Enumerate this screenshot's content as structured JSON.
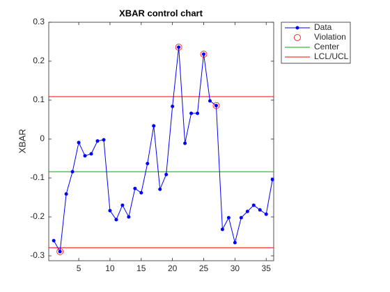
{
  "chart_data": {
    "type": "control",
    "title": "XBAR control chart",
    "ylabel": "XBAR",
    "xlim": [
      0.2,
      36.2
    ],
    "ylim": [
      -0.3125,
      0.3
    ],
    "xticks": [
      5,
      10,
      15,
      20,
      25,
      30,
      35
    ],
    "yticks": [
      -0.3,
      -0.2,
      -0.1,
      0,
      0.1,
      0.2,
      0.3
    ],
    "series": [
      {
        "name": "Data",
        "color": "#0000ff",
        "x": [
          1,
          2,
          3,
          4,
          5,
          6,
          7,
          8,
          9,
          10,
          11,
          12,
          13,
          14,
          15,
          16,
          17,
          18,
          19,
          20,
          21,
          22,
          23,
          24,
          25,
          26,
          27,
          28,
          29,
          30,
          31,
          32,
          33,
          34,
          35,
          36
        ],
        "values": [
          -0.261,
          -0.289,
          -0.141,
          -0.084,
          -0.009,
          -0.043,
          -0.038,
          -0.005,
          -0.002,
          -0.184,
          -0.207,
          -0.17,
          -0.2,
          -0.127,
          -0.138,
          -0.063,
          0.034,
          -0.129,
          -0.091,
          0.084,
          0.236,
          -0.011,
          0.066,
          0.066,
          0.218,
          0.098,
          0.086,
          -0.232,
          -0.202,
          -0.266,
          -0.202,
          -0.186,
          -0.17,
          -0.182,
          -0.193,
          -0.104
        ]
      },
      {
        "name": "Violation",
        "color": "#ff0000",
        "x": [
          2,
          21,
          25,
          27
        ],
        "values": [
          -0.289,
          0.236,
          0.218,
          0.086
        ]
      }
    ],
    "lines": [
      {
        "name": "Center",
        "color": "#00aa00",
        "values": [
          -0.084
        ]
      },
      {
        "name": "LCL/UCL",
        "color": "#ff0000",
        "values": [
          -0.279,
          0.109
        ]
      }
    ]
  }
}
